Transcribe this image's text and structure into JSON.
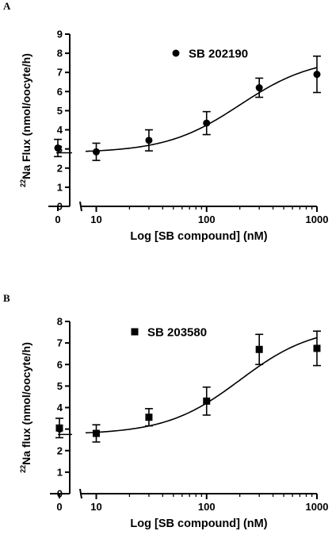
{
  "panels": [
    {
      "letter": "A",
      "chart_data": {
        "type": "scatter",
        "title": "",
        "xlabel": "Log [SB compound] (nM)",
        "ylabel": "²²Na Flux (nmol/oocyte/h)",
        "ylabel_sup": "22",
        "ylabel_rest": "Na Flux (nmol/oocyte/h)",
        "xscale": "log",
        "xlim": [
          8,
          1000
        ],
        "ylim": [
          0,
          9
        ],
        "y_ticks": [
          0,
          1,
          2,
          3,
          4,
          5,
          6,
          7,
          8,
          9
        ],
        "x_ticks": [
          10,
          100,
          1000
        ],
        "zero_tick": "0",
        "axis_break": true,
        "marker": "circle",
        "legend": {
          "label": "SB 202190",
          "position": "top-right"
        },
        "control": {
          "x": "0",
          "y": 3.05,
          "err": 0.45
        },
        "series": [
          {
            "name": "SB 202190",
            "x": [
              10,
              30,
              100,
              300,
              1000
            ],
            "y": [
              2.85,
              3.45,
              4.35,
              6.2,
              6.9
            ],
            "err": [
              0.45,
              0.55,
              0.6,
              0.5,
              0.95
            ]
          }
        ],
        "fit": {
          "bottom": 2.8,
          "top": 7.8,
          "ec50": 200,
          "hill": 1.3
        }
      }
    },
    {
      "letter": "B",
      "chart_data": {
        "type": "scatter",
        "title": "",
        "xlabel": "Log [SB compound] (nM)",
        "ylabel": "²²Na flux (nmol/oocyte/h)",
        "ylabel_sup": "22",
        "ylabel_rest": "Na flux (nmol/oocyte/h)",
        "xscale": "log",
        "xlim": [
          8,
          1000
        ],
        "ylim": [
          0,
          8
        ],
        "y_ticks": [
          0,
          1,
          2,
          3,
          4,
          5,
          6,
          7,
          8
        ],
        "x_ticks": [
          10,
          100,
          1000
        ],
        "zero_tick": "0",
        "axis_break": true,
        "marker": "square",
        "legend": {
          "label": "SB 203580",
          "position": "top-center"
        },
        "control": {
          "x": "0",
          "y": 3.05,
          "err": 0.45
        },
        "series": [
          {
            "name": "SB 203580",
            "x": [
              10,
              30,
              100,
              300,
              1000
            ],
            "y": [
              2.8,
              3.55,
              4.3,
              6.7,
              6.75
            ],
            "err": [
              0.4,
              0.4,
              0.65,
              0.7,
              0.8
            ]
          }
        ],
        "fit": {
          "bottom": 2.75,
          "top": 7.8,
          "ec50": 200,
          "hill": 1.3
        }
      }
    }
  ]
}
